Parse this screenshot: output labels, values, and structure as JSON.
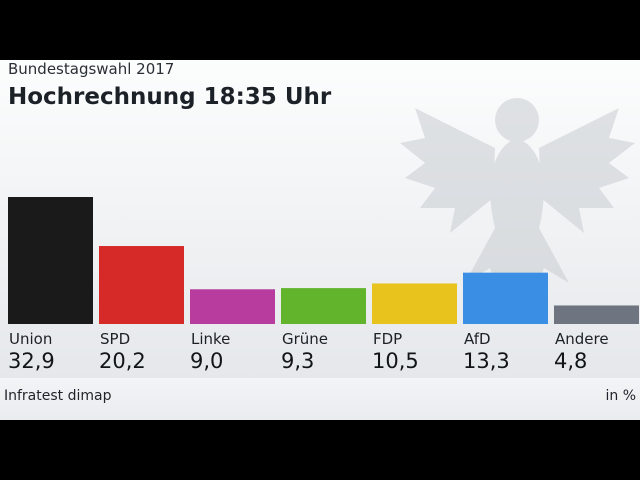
{
  "header": {
    "supertitle": "Bundestagswahl 2017",
    "title": "Hochrechnung 18:35 Uhr"
  },
  "footer": {
    "source": "Infratest dimap",
    "unit": "in %"
  },
  "chart_data": {
    "type": "bar",
    "categories": [
      "Union",
      "SPD",
      "Linke",
      "Grüne",
      "FDP",
      "AfD",
      "Andere"
    ],
    "values": [
      32.9,
      20.2,
      9.0,
      9.3,
      10.5,
      13.3,
      4.8
    ],
    "value_labels": [
      "32,9",
      "20,2",
      "9,0",
      "9,3",
      "10,5",
      "13,3",
      "4,8"
    ],
    "colors": [
      "#1a1a1a",
      "#d62a29",
      "#b73c9d",
      "#63b42d",
      "#e8c31e",
      "#3a8ee3",
      "#6e7480"
    ],
    "ylim": [
      0,
      35
    ],
    "grid": false,
    "legend": "none"
  }
}
